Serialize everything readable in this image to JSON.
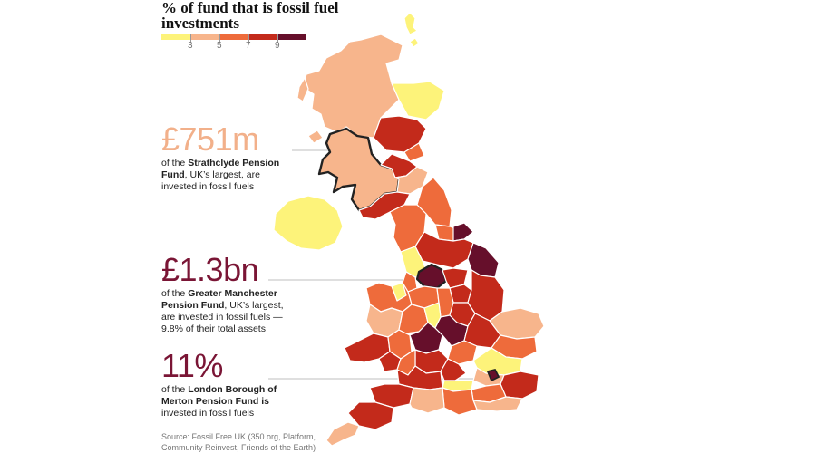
{
  "title": "% of fund that is fossil fuel investments",
  "legend": {
    "colors": [
      "#fdf37a",
      "#f7b58c",
      "#ee6b3b",
      "#c32a1b",
      "#660f2b"
    ],
    "ticks": [
      "3",
      "5",
      "7",
      "9"
    ]
  },
  "stats": [
    {
      "value": "£751m",
      "pre": "of the ",
      "bold": "Strathclyde Pension Fund",
      "post": ", UK’s largest, are invested in fossil fuels"
    },
    {
      "value": "£1.3bn",
      "pre": "of the ",
      "bold": "Greater Manchester Pension Fund",
      "post": ", UK’s largest, are invested in fossil fuels — 9.8% of their total assets"
    },
    {
      "value": "11%",
      "pre": "of the ",
      "bold": "London Borough of Merton Pension Fund is",
      "post": " invested in fossil fuels"
    }
  ],
  "source": "Source: Fossil Free UK (350.org, Platform, Community Reinvest, Friends of the Earth)",
  "map": {
    "highlighted_regions": [
      "Strathclyde",
      "Greater Manchester",
      "Merton"
    ]
  }
}
